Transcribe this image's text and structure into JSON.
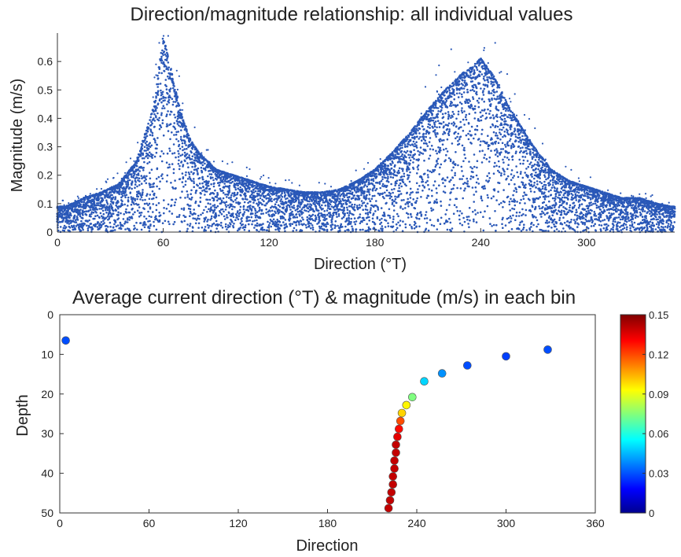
{
  "chart_data": [
    {
      "type": "scatter",
      "title": "Direction/magnitude relationship: all individual values",
      "xlabel": "Direction (°T)",
      "ylabel": "Magnitude (m/s)",
      "xlim": [
        0,
        350
      ],
      "ylim": [
        0,
        0.7
      ],
      "xticks": [
        0,
        60,
        120,
        180,
        240,
        300
      ],
      "yticks": [
        0,
        0.1,
        0.2,
        0.3,
        0.4,
        0.5,
        0.6
      ],
      "xtick_labels": [
        "0",
        "60",
        "120",
        "180",
        "240",
        "300"
      ],
      "ytick_labels": [
        "0",
        "0.1",
        "0.2",
        "0.3",
        "0.4",
        "0.5",
        "0.6"
      ],
      "marker_color": "#2a58b8",
      "grid": false,
      "series": [
        {
          "x": [
            5,
            15,
            25,
            35,
            45,
            50,
            55,
            58,
            60,
            62,
            65,
            70,
            75,
            80,
            90,
            100,
            110,
            120,
            130,
            140,
            150,
            160,
            170,
            180,
            190,
            200,
            210,
            220,
            225,
            230,
            235,
            240,
            245,
            250,
            255,
            260,
            270,
            280,
            290,
            300,
            310,
            320,
            330,
            340,
            348
          ],
          "y": [
            0.09,
            0.12,
            0.14,
            0.17,
            0.25,
            0.35,
            0.45,
            0.6,
            0.68,
            0.64,
            0.55,
            0.42,
            0.33,
            0.28,
            0.22,
            0.2,
            0.18,
            0.16,
            0.15,
            0.14,
            0.14,
            0.15,
            0.18,
            0.22,
            0.28,
            0.35,
            0.43,
            0.5,
            0.53,
            0.56,
            0.58,
            0.61,
            0.57,
            0.52,
            0.45,
            0.4,
            0.3,
            0.22,
            0.18,
            0.16,
            0.14,
            0.12,
            0.12,
            0.1,
            0.09
          ]
        }
      ]
    },
    {
      "type": "scatter",
      "title": "Average current direction (°T) & magnitude (m/s) in each bin",
      "xlabel": "Direction",
      "ylabel": "Depth",
      "xlim": [
        0,
        360
      ],
      "ylim": [
        0,
        50
      ],
      "y_reversed": true,
      "xticks": [
        0,
        60,
        120,
        180,
        240,
        300,
        360
      ],
      "yticks": [
        0,
        10,
        20,
        30,
        40,
        50
      ],
      "xtick_labels": [
        "0",
        "60",
        "120",
        "180",
        "240",
        "300",
        "360"
      ],
      "ytick_labels": [
        "0",
        "10",
        "20",
        "30",
        "40",
        "50"
      ],
      "grid": false,
      "colorbar": {
        "min": 0,
        "max": 0.15,
        "ticks": [
          0,
          0.03,
          0.06,
          0.09,
          0.12,
          0.15
        ],
        "tick_labels": [
          "0",
          "0.03",
          "0.06",
          "0.09",
          "0.12",
          "0.15"
        ],
        "colormap": "jet",
        "placement": "right"
      },
      "points": [
        {
          "direction": 4,
          "depth": 6.5,
          "magnitude": 0.03
        },
        {
          "direction": 328,
          "depth": 8.8,
          "magnitude": 0.03
        },
        {
          "direction": 300,
          "depth": 10.5,
          "magnitude": 0.028
        },
        {
          "direction": 274,
          "depth": 12.8,
          "magnitude": 0.03
        },
        {
          "direction": 257,
          "depth": 14.8,
          "magnitude": 0.04
        },
        {
          "direction": 245,
          "depth": 16.8,
          "magnitude": 0.05
        },
        {
          "direction": 237,
          "depth": 20.8,
          "magnitude": 0.075
        },
        {
          "direction": 233,
          "depth": 22.8,
          "magnitude": 0.095
        },
        {
          "direction": 230,
          "depth": 24.8,
          "magnitude": 0.1
        },
        {
          "direction": 229,
          "depth": 26.8,
          "magnitude": 0.12
        },
        {
          "direction": 228,
          "depth": 28.8,
          "magnitude": 0.13
        },
        {
          "direction": 227,
          "depth": 30.8,
          "magnitude": 0.135
        },
        {
          "direction": 226,
          "depth": 32.8,
          "magnitude": 0.14
        },
        {
          "direction": 226,
          "depth": 34.8,
          "magnitude": 0.14
        },
        {
          "direction": 225,
          "depth": 36.8,
          "magnitude": 0.14
        },
        {
          "direction": 225,
          "depth": 38.8,
          "magnitude": 0.14
        },
        {
          "direction": 224,
          "depth": 40.8,
          "magnitude": 0.14
        },
        {
          "direction": 224,
          "depth": 42.8,
          "magnitude": 0.14
        },
        {
          "direction": 223,
          "depth": 44.8,
          "magnitude": 0.14
        },
        {
          "direction": 222,
          "depth": 46.8,
          "magnitude": 0.14
        },
        {
          "direction": 221,
          "depth": 48.8,
          "magnitude": 0.14
        }
      ]
    }
  ]
}
